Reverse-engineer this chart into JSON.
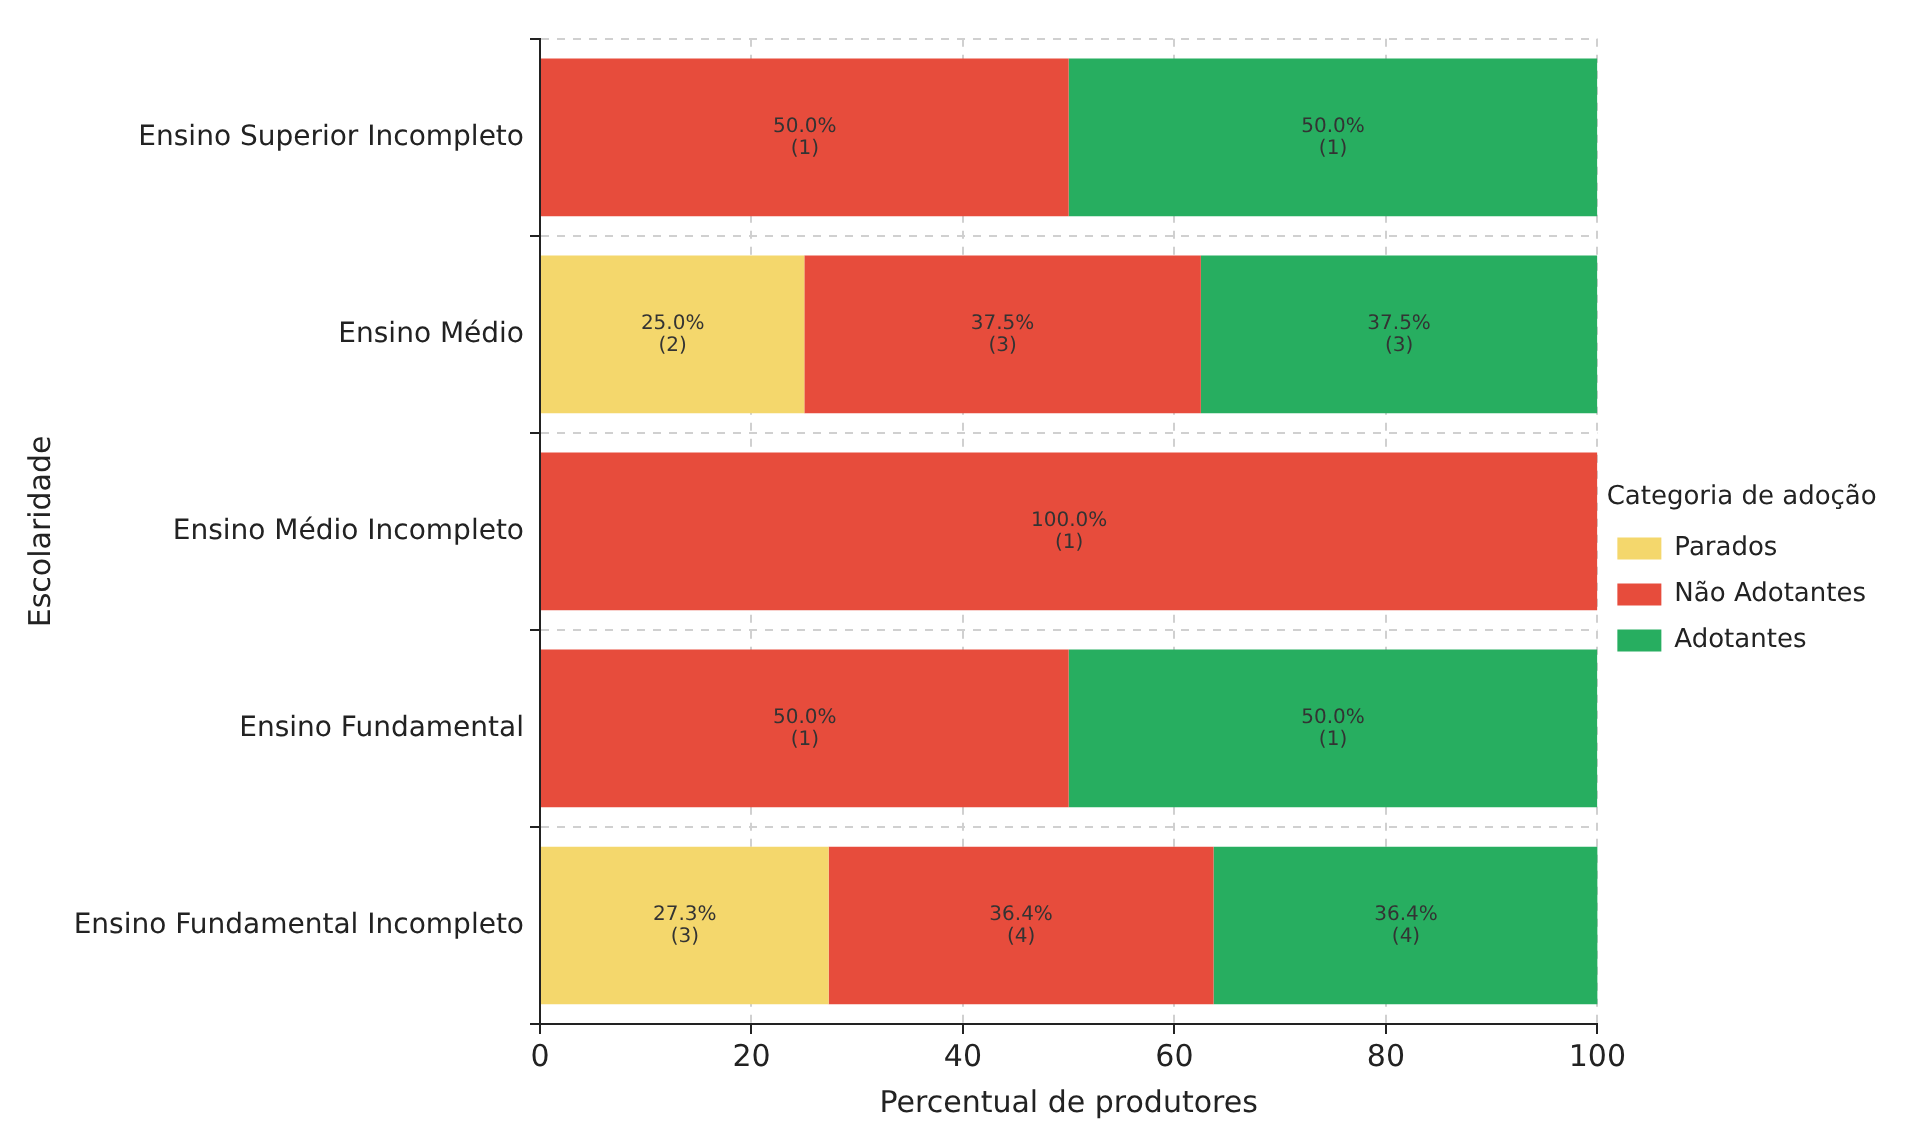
{
  "chart_data": {
    "type": "bar",
    "orientation": "horizontal",
    "stacked": true,
    "xlabel": "Percentual de produtores",
    "ylabel": "Escolaridade",
    "legend_title": "Categoria de adoção",
    "legend": "right",
    "grid": true,
    "line_style": "dashed",
    "categories": [
      "Ensino Superior Incompleto",
      "Ensino Médio",
      "Ensino Médio Incompleto",
      "Ensino Fundamental",
      "Ensino Fundamental Incompleto"
    ],
    "xlim": [
      0,
      100
    ],
    "xticks": [
      0,
      20,
      40,
      60,
      80,
      100
    ],
    "series": [
      {
        "name": "Parados",
        "color": "#f4d76c",
        "values": [
          null,
          25.0,
          null,
          null,
          27.3
        ],
        "value_labels": [
          null,
          "25.0%\n(2)",
          null,
          null,
          "27.3%\n(3)"
        ]
      },
      {
        "name": "Não Adotantes",
        "color": "#e74c3c",
        "values": [
          50.0,
          37.5,
          100.0,
          50.0,
          36.4
        ],
        "value_labels": [
          "50.0%\n(1)",
          "37.5%\n(3)",
          "100.0%\n(1)",
          "50.0%\n(1)",
          "36.4%\n(4)"
        ]
      },
      {
        "name": "Adotantes",
        "color": "#27ae60",
        "values": [
          50.0,
          37.5,
          null,
          50.0,
          36.4
        ],
        "value_labels": [
          "50.0%\n(1)",
          "37.5%\n(3)",
          null,
          "50.0%\n(1)",
          "36.4%\n(4)"
        ]
      }
    ]
  }
}
